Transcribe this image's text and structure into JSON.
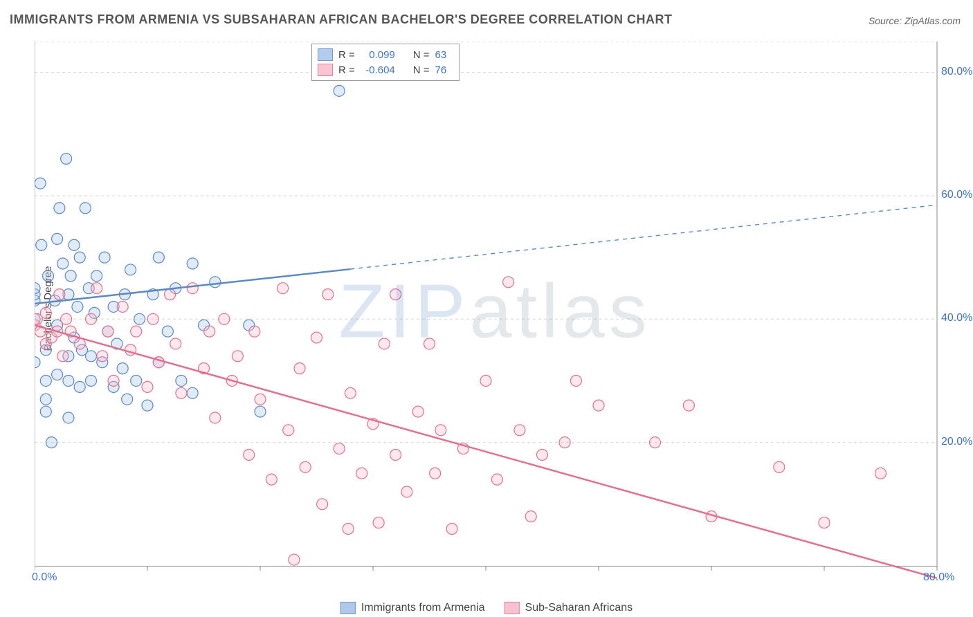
{
  "title": "IMMIGRANTS FROM ARMENIA VS SUBSAHARAN AFRICAN BACHELOR'S DEGREE CORRELATION CHART",
  "source_label": "Source: ",
  "source_name": "ZipAtlas.com",
  "watermark": "ZIPatlas",
  "ylabel": "Bachelor's Degree",
  "chart": {
    "type": "scatter",
    "xlim": [
      0,
      80
    ],
    "ylim": [
      0,
      85
    ],
    "x_ticks": [
      0,
      80
    ],
    "y_ticks": [
      20,
      40,
      60,
      80
    ],
    "x_tick_format_suffix": "%",
    "y_tick_format_suffix": "%",
    "x_minor_tick_step": 10,
    "grid_color": "#d5d5d5",
    "axis_color": "#888888",
    "tick_label_color": "#3b74d1",
    "background_color": "#ffffff",
    "marker_radius": 8,
    "marker_stroke_width": 1.2,
    "marker_fill_opacity": 0.35,
    "trend_line_width": 2.5,
    "series": [
      {
        "id": "armenia",
        "label": "Immigrants from Armenia",
        "color_stroke": "#5a89c7",
        "color_fill": "#a8c4e8",
        "r_value": "0.099",
        "n_value": "63",
        "trend": {
          "y_at_x0": 42.5,
          "y_at_x80": 58.5,
          "solid_until_x": 28
        },
        "points": [
          [
            0,
            33
          ],
          [
            0,
            40
          ],
          [
            0,
            43
          ],
          [
            0,
            44
          ],
          [
            0,
            45
          ],
          [
            0.5,
            62
          ],
          [
            0.6,
            52
          ],
          [
            1,
            25
          ],
          [
            1,
            27
          ],
          [
            1,
            30
          ],
          [
            1,
            35
          ],
          [
            1.2,
            47
          ],
          [
            1.5,
            20
          ],
          [
            1.8,
            43
          ],
          [
            2,
            31
          ],
          [
            2,
            39
          ],
          [
            2,
            53
          ],
          [
            2.2,
            58
          ],
          [
            2.5,
            49
          ],
          [
            2.8,
            66
          ],
          [
            3,
            24
          ],
          [
            3,
            30
          ],
          [
            3,
            34
          ],
          [
            3,
            44
          ],
          [
            3.2,
            47
          ],
          [
            3.5,
            37
          ],
          [
            3.5,
            52
          ],
          [
            3.8,
            42
          ],
          [
            4,
            29
          ],
          [
            4,
            50
          ],
          [
            4.2,
            35
          ],
          [
            4.5,
            58
          ],
          [
            4.8,
            45
          ],
          [
            5,
            30
          ],
          [
            5,
            34
          ],
          [
            5.3,
            41
          ],
          [
            5.5,
            47
          ],
          [
            6,
            33
          ],
          [
            6.2,
            50
          ],
          [
            6.5,
            38
          ],
          [
            7,
            29
          ],
          [
            7,
            42
          ],
          [
            7.3,
            36
          ],
          [
            7.8,
            32
          ],
          [
            8,
            44
          ],
          [
            8.2,
            27
          ],
          [
            8.5,
            48
          ],
          [
            9,
            30
          ],
          [
            9.3,
            40
          ],
          [
            10,
            26
          ],
          [
            10.5,
            44
          ],
          [
            11,
            33
          ],
          [
            11,
            50
          ],
          [
            11.8,
            38
          ],
          [
            12.5,
            45
          ],
          [
            13,
            30
          ],
          [
            14,
            49
          ],
          [
            14,
            28
          ],
          [
            15,
            39
          ],
          [
            16,
            46
          ],
          [
            19,
            39
          ],
          [
            20,
            25
          ],
          [
            27,
            77
          ]
        ]
      },
      {
        "id": "subsaharan",
        "label": "Sub-Saharan Africans",
        "color_stroke": "#e56f8e",
        "color_fill": "#f7bccb",
        "r_value": "-0.604",
        "n_value": "76",
        "trend": {
          "y_at_x0": 39,
          "y_at_x80": -2,
          "solid_until_x": 80
        },
        "points": [
          [
            0,
            39
          ],
          [
            0.2,
            40
          ],
          [
            0.5,
            38
          ],
          [
            1,
            36
          ],
          [
            1,
            41
          ],
          [
            1.5,
            37
          ],
          [
            2,
            38
          ],
          [
            2.2,
            44
          ],
          [
            2.5,
            34
          ],
          [
            2.8,
            40
          ],
          [
            3.2,
            38
          ],
          [
            4,
            36
          ],
          [
            5,
            40
          ],
          [
            5.5,
            45
          ],
          [
            6,
            34
          ],
          [
            6.5,
            38
          ],
          [
            7,
            30
          ],
          [
            7.8,
            42
          ],
          [
            8.5,
            35
          ],
          [
            9,
            38
          ],
          [
            10,
            29
          ],
          [
            10.5,
            40
          ],
          [
            11,
            33
          ],
          [
            12,
            44
          ],
          [
            12.5,
            36
          ],
          [
            13,
            28
          ],
          [
            14,
            45
          ],
          [
            15,
            32
          ],
          [
            15.5,
            38
          ],
          [
            16,
            24
          ],
          [
            16.8,
            40
          ],
          [
            17.5,
            30
          ],
          [
            18,
            34
          ],
          [
            19,
            18
          ],
          [
            19.5,
            38
          ],
          [
            20,
            27
          ],
          [
            21,
            14
          ],
          [
            22,
            45
          ],
          [
            22.5,
            22
          ],
          [
            23,
            1
          ],
          [
            23.5,
            32
          ],
          [
            24,
            16
          ],
          [
            25,
            37
          ],
          [
            25.5,
            10
          ],
          [
            26,
            44
          ],
          [
            27,
            19
          ],
          [
            27.8,
            6
          ],
          [
            28,
            28
          ],
          [
            29,
            15
          ],
          [
            30,
            23
          ],
          [
            30.5,
            7
          ],
          [
            31,
            36
          ],
          [
            32,
            18
          ],
          [
            32,
            44
          ],
          [
            33,
            12
          ],
          [
            34,
            25
          ],
          [
            35,
            36
          ],
          [
            35.5,
            15
          ],
          [
            36,
            22
          ],
          [
            37,
            6
          ],
          [
            38,
            19
          ],
          [
            40,
            30
          ],
          [
            41,
            14
          ],
          [
            42,
            46
          ],
          [
            43,
            22
          ],
          [
            44,
            8
          ],
          [
            45,
            18
          ],
          [
            47,
            20
          ],
          [
            48,
            30
          ],
          [
            50,
            26
          ],
          [
            55,
            20
          ],
          [
            58,
            26
          ],
          [
            60,
            8
          ],
          [
            66,
            16
          ],
          [
            70,
            7
          ],
          [
            75,
            15
          ]
        ]
      }
    ]
  },
  "legend": {
    "r_label": "R =",
    "n_label": "N ="
  }
}
